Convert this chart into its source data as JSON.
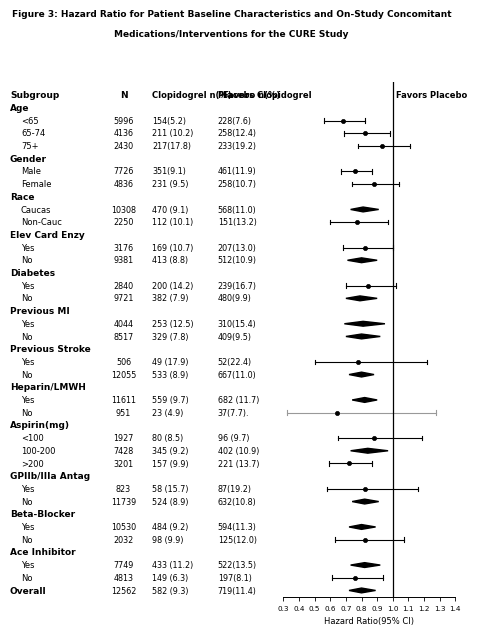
{
  "title_line1": "Figure 3: Hazard Ratio for Patient Baseline Characteristics and On-Study Concomitant",
  "title_line2": "Medications/Interventions for the CURE Study",
  "rows": [
    {
      "label": "Age",
      "indent": 0,
      "header": true,
      "N": "",
      "clop": "",
      "plac": "",
      "hr": null,
      "lo": null,
      "hi": null,
      "diamond": false,
      "bold": false
    },
    {
      "label": "<65",
      "indent": 1,
      "header": false,
      "N": "5996",
      "clop": "154(5.2)",
      "plac": "228(7.6)",
      "hr": 0.68,
      "lo": 0.56,
      "hi": 0.82,
      "diamond": false,
      "bold": false
    },
    {
      "label": "65-74",
      "indent": 1,
      "header": false,
      "N": "4136",
      "clop": "211 (10.2)",
      "plac": "258(12.4)",
      "hr": 0.82,
      "lo": 0.69,
      "hi": 0.98,
      "diamond": false,
      "bold": false
    },
    {
      "label": "75+",
      "indent": 1,
      "header": false,
      "N": "2430",
      "clop": "217(17.8)",
      "plac": "233(19.2)",
      "hr": 0.93,
      "lo": 0.78,
      "hi": 1.11,
      "diamond": false,
      "bold": false
    },
    {
      "label": "Gender",
      "indent": 0,
      "header": true,
      "N": "",
      "clop": "",
      "plac": "",
      "hr": null,
      "lo": null,
      "hi": null,
      "diamond": false,
      "bold": false
    },
    {
      "label": "Male",
      "indent": 1,
      "header": false,
      "N": "7726",
      "clop": "351(9.1)",
      "plac": "461(11.9)",
      "hr": 0.76,
      "lo": 0.67,
      "hi": 0.87,
      "diamond": false,
      "bold": false
    },
    {
      "label": "Female",
      "indent": 1,
      "header": false,
      "N": "4836",
      "clop": "231 (9.5)",
      "plac": "258(10.7)",
      "hr": 0.88,
      "lo": 0.74,
      "hi": 1.04,
      "diamond": false,
      "bold": false
    },
    {
      "label": "Race",
      "indent": 0,
      "header": true,
      "N": "",
      "clop": "",
      "plac": "",
      "hr": null,
      "lo": null,
      "hi": null,
      "diamond": false,
      "bold": false
    },
    {
      "label": "Caucas",
      "indent": 1,
      "header": false,
      "N": "10308",
      "clop": "470 (9.1)",
      "plac": "568(11.0)",
      "hr": 0.81,
      "lo": 0.73,
      "hi": 0.91,
      "diamond": true,
      "bold": false
    },
    {
      "label": "Non-Cauc",
      "indent": 1,
      "header": false,
      "N": "2250",
      "clop": "112 (10.1)",
      "plac": "151(13.2)",
      "hr": 0.77,
      "lo": 0.6,
      "hi": 0.97,
      "diamond": false,
      "bold": false
    },
    {
      "label": "Elev Card Enzy",
      "indent": 0,
      "header": true,
      "N": "",
      "clop": "",
      "plac": "",
      "hr": null,
      "lo": null,
      "hi": null,
      "diamond": false,
      "bold": false
    },
    {
      "label": "Yes",
      "indent": 1,
      "header": false,
      "N": "3176",
      "clop": "169 (10.7)",
      "plac": "207(13.0)",
      "hr": 0.82,
      "lo": 0.68,
      "hi": 1.0,
      "diamond": false,
      "bold": false
    },
    {
      "label": "No",
      "indent": 1,
      "header": false,
      "N": "9381",
      "clop": "413 (8.8)",
      "plac": "512(10.9)",
      "hr": 0.8,
      "lo": 0.71,
      "hi": 0.9,
      "diamond": true,
      "bold": false
    },
    {
      "label": "Diabetes",
      "indent": 0,
      "header": true,
      "N": "",
      "clop": "",
      "plac": "",
      "hr": null,
      "lo": null,
      "hi": null,
      "diamond": false,
      "bold": false
    },
    {
      "label": "Yes",
      "indent": 1,
      "header": false,
      "N": "2840",
      "clop": "200 (14.2)",
      "plac": "239(16.7)",
      "hr": 0.84,
      "lo": 0.7,
      "hi": 1.02,
      "diamond": false,
      "bold": false
    },
    {
      "label": "No",
      "indent": 1,
      "header": false,
      "N": "9721",
      "clop": "382 (7.9)",
      "plac": "480(9.9)",
      "hr": 0.79,
      "lo": 0.7,
      "hi": 0.9,
      "diamond": true,
      "bold": false
    },
    {
      "label": "Previous MI",
      "indent": 0,
      "header": true,
      "N": "",
      "clop": "",
      "plac": "",
      "hr": null,
      "lo": null,
      "hi": null,
      "diamond": false,
      "bold": false
    },
    {
      "label": "Yes",
      "indent": 1,
      "header": false,
      "N": "4044",
      "clop": "253 (12.5)",
      "plac": "310(15.4)",
      "hr": 0.81,
      "lo": 0.69,
      "hi": 0.95,
      "diamond": true,
      "bold": false
    },
    {
      "label": "No",
      "indent": 1,
      "header": false,
      "N": "8517",
      "clop": "329 (7.8)",
      "plac": "409(9.5)",
      "hr": 0.8,
      "lo": 0.7,
      "hi": 0.92,
      "diamond": true,
      "bold": false
    },
    {
      "label": "Previous Stroke",
      "indent": 0,
      "header": true,
      "N": "",
      "clop": "",
      "plac": "",
      "hr": null,
      "lo": null,
      "hi": null,
      "diamond": false,
      "bold": false
    },
    {
      "label": "Yes",
      "indent": 1,
      "header": false,
      "N": "506",
      "clop": "49 (17.9)",
      "plac": "52(22.4)",
      "hr": 0.78,
      "lo": 0.5,
      "hi": 1.22,
      "diamond": false,
      "bold": false
    },
    {
      "label": "No",
      "indent": 1,
      "header": false,
      "N": "12055",
      "clop": "533 (8.9)",
      "plac": "667(11.0)",
      "hr": 0.8,
      "lo": 0.72,
      "hi": 0.88,
      "diamond": true,
      "bold": false
    },
    {
      "label": "Heparin/LMWH",
      "indent": 0,
      "header": true,
      "N": "",
      "clop": "",
      "plac": "",
      "hr": null,
      "lo": null,
      "hi": null,
      "diamond": false,
      "bold": false
    },
    {
      "label": "Yes",
      "indent": 1,
      "header": false,
      "N": "11611",
      "clop": "559 (9.7)",
      "plac": "682 (11.7)",
      "hr": 0.82,
      "lo": 0.74,
      "hi": 0.9,
      "diamond": true,
      "bold": false
    },
    {
      "label": "No",
      "indent": 1,
      "header": false,
      "N": "951",
      "clop": "23 (4.9)",
      "plac": "37(7.7).",
      "hr": 0.64,
      "lo": 0.32,
      "hi": 1.28,
      "diamond": false,
      "bold": false,
      "gray_ci": true
    },
    {
      "label": "Aspirin(mg)",
      "indent": 0,
      "header": true,
      "N": "",
      "clop": "",
      "plac": "",
      "hr": null,
      "lo": null,
      "hi": null,
      "diamond": false,
      "bold": false
    },
    {
      "label": "<100",
      "indent": 1,
      "header": false,
      "N": "1927",
      "clop": "80 (8.5)",
      "plac": "96 (9.7)",
      "hr": 0.88,
      "lo": 0.65,
      "hi": 1.19,
      "diamond": false,
      "bold": false
    },
    {
      "label": "100-200",
      "indent": 1,
      "header": false,
      "N": "7428",
      "clop": "345 (9.2)",
      "plac": "402 (10.9)",
      "hr": 0.84,
      "lo": 0.73,
      "hi": 0.97,
      "diamond": true,
      "bold": false
    },
    {
      "label": ">200",
      "indent": 1,
      "header": false,
      "N": "3201",
      "clop": "157 (9.9)",
      "plac": "221 (13.7)",
      "hr": 0.72,
      "lo": 0.59,
      "hi": 0.87,
      "diamond": false,
      "bold": false
    },
    {
      "label": "GPIIb/IIIa Antag",
      "indent": 0,
      "header": true,
      "N": "",
      "clop": "",
      "plac": "",
      "hr": null,
      "lo": null,
      "hi": null,
      "diamond": false,
      "bold": false
    },
    {
      "label": "Yes",
      "indent": 1,
      "header": false,
      "N": "823",
      "clop": "58 (15.7)",
      "plac": "87(19.2)",
      "hr": 0.82,
      "lo": 0.58,
      "hi": 1.16,
      "diamond": false,
      "bold": false
    },
    {
      "label": "No",
      "indent": 1,
      "header": false,
      "N": "11739",
      "clop": "524 (8.9)",
      "plac": "632(10.8)",
      "hr": 0.82,
      "lo": 0.74,
      "hi": 0.91,
      "diamond": true,
      "bold": false
    },
    {
      "label": "Beta-Blocker",
      "indent": 0,
      "header": true,
      "N": "",
      "clop": "",
      "plac": "",
      "hr": null,
      "lo": null,
      "hi": null,
      "diamond": false,
      "bold": false
    },
    {
      "label": "Yes",
      "indent": 1,
      "header": false,
      "N": "10530",
      "clop": "484 (9.2)",
      "plac": "594(11.3)",
      "hr": 0.8,
      "lo": 0.72,
      "hi": 0.89,
      "diamond": true,
      "bold": false
    },
    {
      "label": "No",
      "indent": 1,
      "header": false,
      "N": "2032",
      "clop": "98 (9.9)",
      "plac": "125(12.0)",
      "hr": 0.82,
      "lo": 0.63,
      "hi": 1.07,
      "diamond": false,
      "bold": false
    },
    {
      "label": "Ace Inhibitor",
      "indent": 0,
      "header": true,
      "N": "",
      "clop": "",
      "plac": "",
      "hr": null,
      "lo": null,
      "hi": null,
      "diamond": false,
      "bold": false
    },
    {
      "label": "Yes",
      "indent": 1,
      "header": false,
      "N": "7749",
      "clop": "433 (11.2)",
      "plac": "522(13.5)",
      "hr": 0.82,
      "lo": 0.73,
      "hi": 0.92,
      "diamond": true,
      "bold": false
    },
    {
      "label": "No",
      "indent": 1,
      "header": false,
      "N": "4813",
      "clop": "149 (6.3)",
      "plac": "197(8.1)",
      "hr": 0.76,
      "lo": 0.61,
      "hi": 0.94,
      "diamond": false,
      "bold": false
    },
    {
      "label": "Overall",
      "indent": 0,
      "header": false,
      "N": "12562",
      "clop": "582 (9.3)",
      "plac": "719(11.4)",
      "hr": 0.8,
      "lo": 0.72,
      "hi": 0.89,
      "diamond": true,
      "bold": true
    }
  ],
  "xmin": 0.3,
  "xmax": 1.4,
  "xticks": [
    0.3,
    0.4,
    0.5,
    0.6,
    0.7,
    0.8,
    0.9,
    1.0,
    1.1,
    1.2,
    1.3,
    1.4
  ],
  "xticklabels": [
    "0.3",
    "0.4",
    "0.5",
    "0.6",
    "0.7",
    "0.8",
    "0.9",
    "1.0",
    "1.1",
    "1.2",
    "1.3",
    "1.4"
  ],
  "vline_x": 1.0,
  "xlabel": "Hazard Ratio(95% CI)",
  "col_header_subgroup": "Subgroup",
  "col_header_N": "N",
  "col_header_clop": "Clopidogrel n(%)",
  "col_header_plac": "Placebo n(%)",
  "col_header_fav_clop": "Favors Clopidogrel",
  "col_header_fav_plac": "Favors Placebo"
}
